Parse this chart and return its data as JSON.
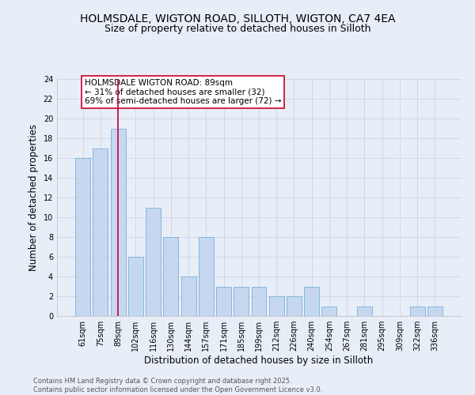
{
  "title1": "HOLMSDALE, WIGTON ROAD, SILLOTH, WIGTON, CA7 4EA",
  "title2": "Size of property relative to detached houses in Silloth",
  "xlabel": "Distribution of detached houses by size in Silloth",
  "ylabel": "Number of detached properties",
  "categories": [
    "61sqm",
    "75sqm",
    "89sqm",
    "102sqm",
    "116sqm",
    "130sqm",
    "144sqm",
    "157sqm",
    "171sqm",
    "185sqm",
    "199sqm",
    "212sqm",
    "226sqm",
    "240sqm",
    "254sqm",
    "267sqm",
    "281sqm",
    "295sqm",
    "309sqm",
    "322sqm",
    "336sqm"
  ],
  "values": [
    16,
    17,
    19,
    6,
    11,
    8,
    4,
    8,
    3,
    3,
    3,
    2,
    2,
    3,
    1,
    0,
    1,
    0,
    0,
    1,
    1
  ],
  "bar_color": "#c5d8f0",
  "bar_edge_color": "#7bafd4",
  "highlight_index": 2,
  "highlight_color": "#c8002a",
  "annotation_text": "HOLMSDALE WIGTON ROAD: 89sqm\n← 31% of detached houses are smaller (32)\n69% of semi-detached houses are larger (72) →",
  "annotation_box_color": "white",
  "annotation_box_edge": "#c8002a",
  "ylim": [
    0,
    24
  ],
  "yticks": [
    0,
    2,
    4,
    6,
    8,
    10,
    12,
    14,
    16,
    18,
    20,
    22,
    24
  ],
  "grid_color": "#d0d8e8",
  "background_color": "#e8eef8",
  "footer": "Contains HM Land Registry data © Crown copyright and database right 2025.\nContains public sector information licensed under the Open Government Licence v3.0.",
  "title_fontsize": 10,
  "subtitle_fontsize": 9,
  "axis_label_fontsize": 8.5,
  "tick_fontsize": 7,
  "annot_fontsize": 7.5,
  "footer_fontsize": 6
}
